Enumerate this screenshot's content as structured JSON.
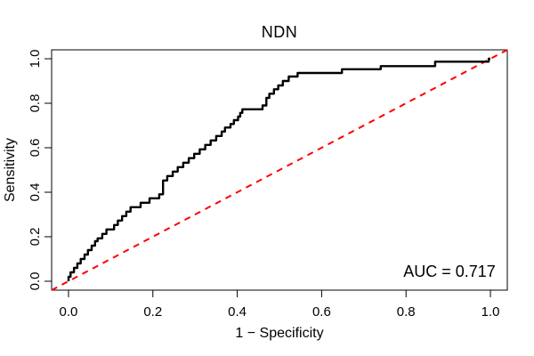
{
  "figure": {
    "title": "NDN",
    "xlabel": "1 − Specificity",
    "ylabel": "Sensitivity",
    "auc_label": "AUC = 0.717"
  },
  "chart_data": {
    "type": "line",
    "subtype": "roc-curve",
    "title": "NDN",
    "xlabel": "1 − Specificity",
    "ylabel": "Sensitivity",
    "auc": 0.717,
    "xlim": [
      -0.04,
      1.04
    ],
    "ylim": [
      -0.04,
      1.04
    ],
    "x_ticks": [
      "0.0",
      "0.2",
      "0.4",
      "0.6",
      "0.8",
      "1.0"
    ],
    "y_ticks": [
      "0.0",
      "0.2",
      "0.4",
      "0.6",
      "0.8",
      "1.0"
    ],
    "grid": false,
    "legend": "none",
    "annotations": [
      {
        "text": "AUC = 0.717",
        "x": 0.9,
        "y": 0.02,
        "anchor": "middle"
      }
    ],
    "series": [
      {
        "name": "ROC curve",
        "color": "#000000",
        "line_style": "solid",
        "line_width": 2.4,
        "points": [
          [
            0.0,
            0.0
          ],
          [
            0.0,
            0.02
          ],
          [
            0.005,
            0.02
          ],
          [
            0.005,
            0.04
          ],
          [
            0.013,
            0.04
          ],
          [
            0.013,
            0.06
          ],
          [
            0.021,
            0.06
          ],
          [
            0.021,
            0.08
          ],
          [
            0.029,
            0.08
          ],
          [
            0.029,
            0.1
          ],
          [
            0.038,
            0.1
          ],
          [
            0.038,
            0.12
          ],
          [
            0.046,
            0.12
          ],
          [
            0.046,
            0.14
          ],
          [
            0.055,
            0.14
          ],
          [
            0.055,
            0.16
          ],
          [
            0.063,
            0.16
          ],
          [
            0.063,
            0.18
          ],
          [
            0.069,
            0.18
          ],
          [
            0.069,
            0.193
          ],
          [
            0.08,
            0.193
          ],
          [
            0.08,
            0.213
          ],
          [
            0.09,
            0.213
          ],
          [
            0.09,
            0.233
          ],
          [
            0.108,
            0.233
          ],
          [
            0.108,
            0.253
          ],
          [
            0.117,
            0.253
          ],
          [
            0.117,
            0.273
          ],
          [
            0.127,
            0.273
          ],
          [
            0.127,
            0.293
          ],
          [
            0.137,
            0.293
          ],
          [
            0.137,
            0.313
          ],
          [
            0.147,
            0.313
          ],
          [
            0.147,
            0.333
          ],
          [
            0.171,
            0.333
          ],
          [
            0.171,
            0.353
          ],
          [
            0.192,
            0.353
          ],
          [
            0.192,
            0.373
          ],
          [
            0.215,
            0.373
          ],
          [
            0.215,
            0.391
          ],
          [
            0.224,
            0.391
          ],
          [
            0.224,
            0.453
          ],
          [
            0.234,
            0.453
          ],
          [
            0.234,
            0.473
          ],
          [
            0.247,
            0.473
          ],
          [
            0.247,
            0.493
          ],
          [
            0.259,
            0.493
          ],
          [
            0.259,
            0.513
          ],
          [
            0.272,
            0.513
          ],
          [
            0.272,
            0.533
          ],
          [
            0.285,
            0.533
          ],
          [
            0.285,
            0.553
          ],
          [
            0.298,
            0.553
          ],
          [
            0.298,
            0.573
          ],
          [
            0.311,
            0.573
          ],
          [
            0.311,
            0.593
          ],
          [
            0.324,
            0.593
          ],
          [
            0.324,
            0.613
          ],
          [
            0.337,
            0.613
          ],
          [
            0.337,
            0.633
          ],
          [
            0.35,
            0.633
          ],
          [
            0.35,
            0.653
          ],
          [
            0.363,
            0.653
          ],
          [
            0.363,
            0.673
          ],
          [
            0.371,
            0.673
          ],
          [
            0.371,
            0.691
          ],
          [
            0.384,
            0.691
          ],
          [
            0.384,
            0.707
          ],
          [
            0.392,
            0.707
          ],
          [
            0.392,
            0.724
          ],
          [
            0.402,
            0.724
          ],
          [
            0.402,
            0.74
          ],
          [
            0.407,
            0.74
          ],
          [
            0.407,
            0.757
          ],
          [
            0.412,
            0.757
          ],
          [
            0.412,
            0.773
          ],
          [
            0.46,
            0.773
          ],
          [
            0.46,
            0.79
          ],
          [
            0.469,
            0.79
          ],
          [
            0.469,
            0.824
          ],
          [
            0.476,
            0.824
          ],
          [
            0.476,
            0.843
          ],
          [
            0.487,
            0.843
          ],
          [
            0.487,
            0.863
          ],
          [
            0.497,
            0.863
          ],
          [
            0.497,
            0.88
          ],
          [
            0.508,
            0.88
          ],
          [
            0.508,
            0.9
          ],
          [
            0.522,
            0.9
          ],
          [
            0.522,
            0.92
          ],
          [
            0.543,
            0.92
          ],
          [
            0.543,
            0.936
          ],
          [
            0.648,
            0.936
          ],
          [
            0.648,
            0.953
          ],
          [
            0.74,
            0.953
          ],
          [
            0.74,
            0.967
          ],
          [
            0.869,
            0.967
          ],
          [
            0.869,
            0.987
          ],
          [
            0.996,
            0.987
          ],
          [
            0.996,
            1.0
          ],
          [
            1.0,
            1.0
          ]
        ]
      },
      {
        "name": "Chance diagonal",
        "color": "#FF0000",
        "line_style": "dashed",
        "line_width": 2,
        "points": [
          [
            0,
            0
          ],
          [
            1,
            1
          ]
        ]
      }
    ]
  },
  "colors": {
    "background": "#FFFFFF",
    "axis": "#000000",
    "curve": "#000000",
    "diagonal": "#FF0000",
    "text": "#000000"
  }
}
